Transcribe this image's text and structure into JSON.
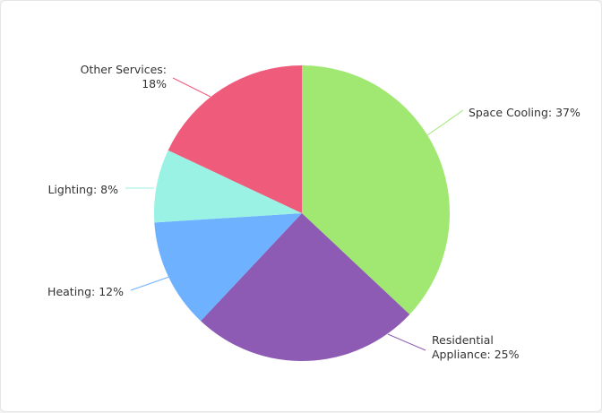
{
  "chart_data": {
    "type": "pie",
    "title": "",
    "start_angle_deg": 0,
    "direction": "clockwise",
    "slices": [
      {
        "name": "Space Cooling",
        "value": 37,
        "label_lines": [
          "Space Cooling: 37%"
        ],
        "color": "#a0e872"
      },
      {
        "name": "Residential Appliance",
        "value": 25,
        "label_lines": [
          "Residential",
          "Appliance: 25%"
        ],
        "color": "#8d5bb3"
      },
      {
        "name": "Heating",
        "value": 12,
        "label_lines": [
          "Heating: 12%"
        ],
        "color": "#6eb1ff"
      },
      {
        "name": "Lighting",
        "value": 8,
        "label_lines": [
          "Lighting: 8%"
        ],
        "color": "#99f2e3"
      },
      {
        "name": "Other Services",
        "value": 18,
        "label_lines": [
          "Other Services:",
          "18%"
        ],
        "color": "#ef5b7b"
      }
    ]
  }
}
